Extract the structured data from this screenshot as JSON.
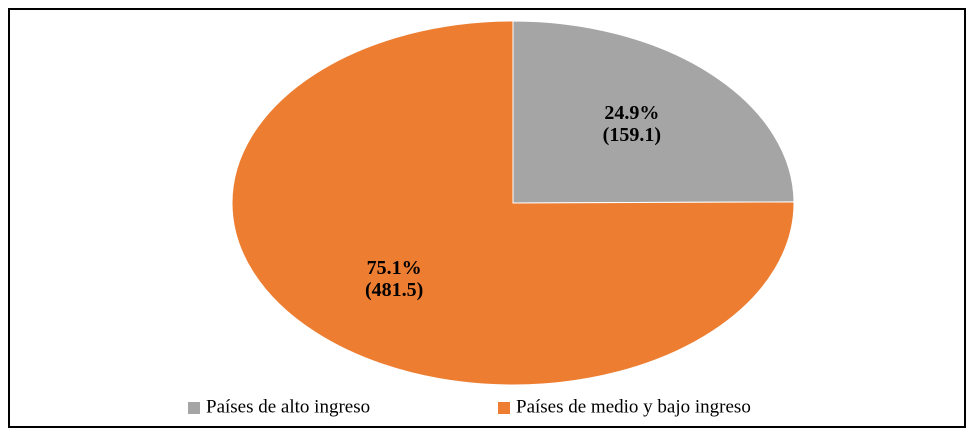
{
  "chart_data": {
    "type": "pie",
    "categories": [
      "Países de alto ingreso",
      "Países de medio y bajo ingreso"
    ],
    "values": [
      24.9,
      75.1
    ],
    "value_labels": [
      "24.9%",
      "75.1%"
    ],
    "amounts": [
      159.1,
      481.5
    ],
    "amount_labels": [
      "(159.1)",
      "(481.5)"
    ],
    "colors": [
      "#a5a5a5",
      "#ed7d31"
    ],
    "legend": "bottom"
  }
}
